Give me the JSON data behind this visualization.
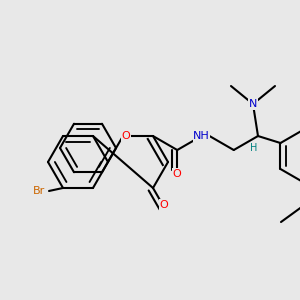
{
  "bg_color": "#e8e8e8",
  "bond_color": "#000000",
  "bond_width": 1.5,
  "dbo": 0.055,
  "atom_bg": "#e8e8e8",
  "figsize": [
    3.0,
    3.0
  ],
  "dpi": 100,
  "colors": {
    "O": "#ff0000",
    "Br": "#cc6600",
    "N": "#0000cc",
    "H_stereo": "#008080",
    "C": "#000000"
  }
}
